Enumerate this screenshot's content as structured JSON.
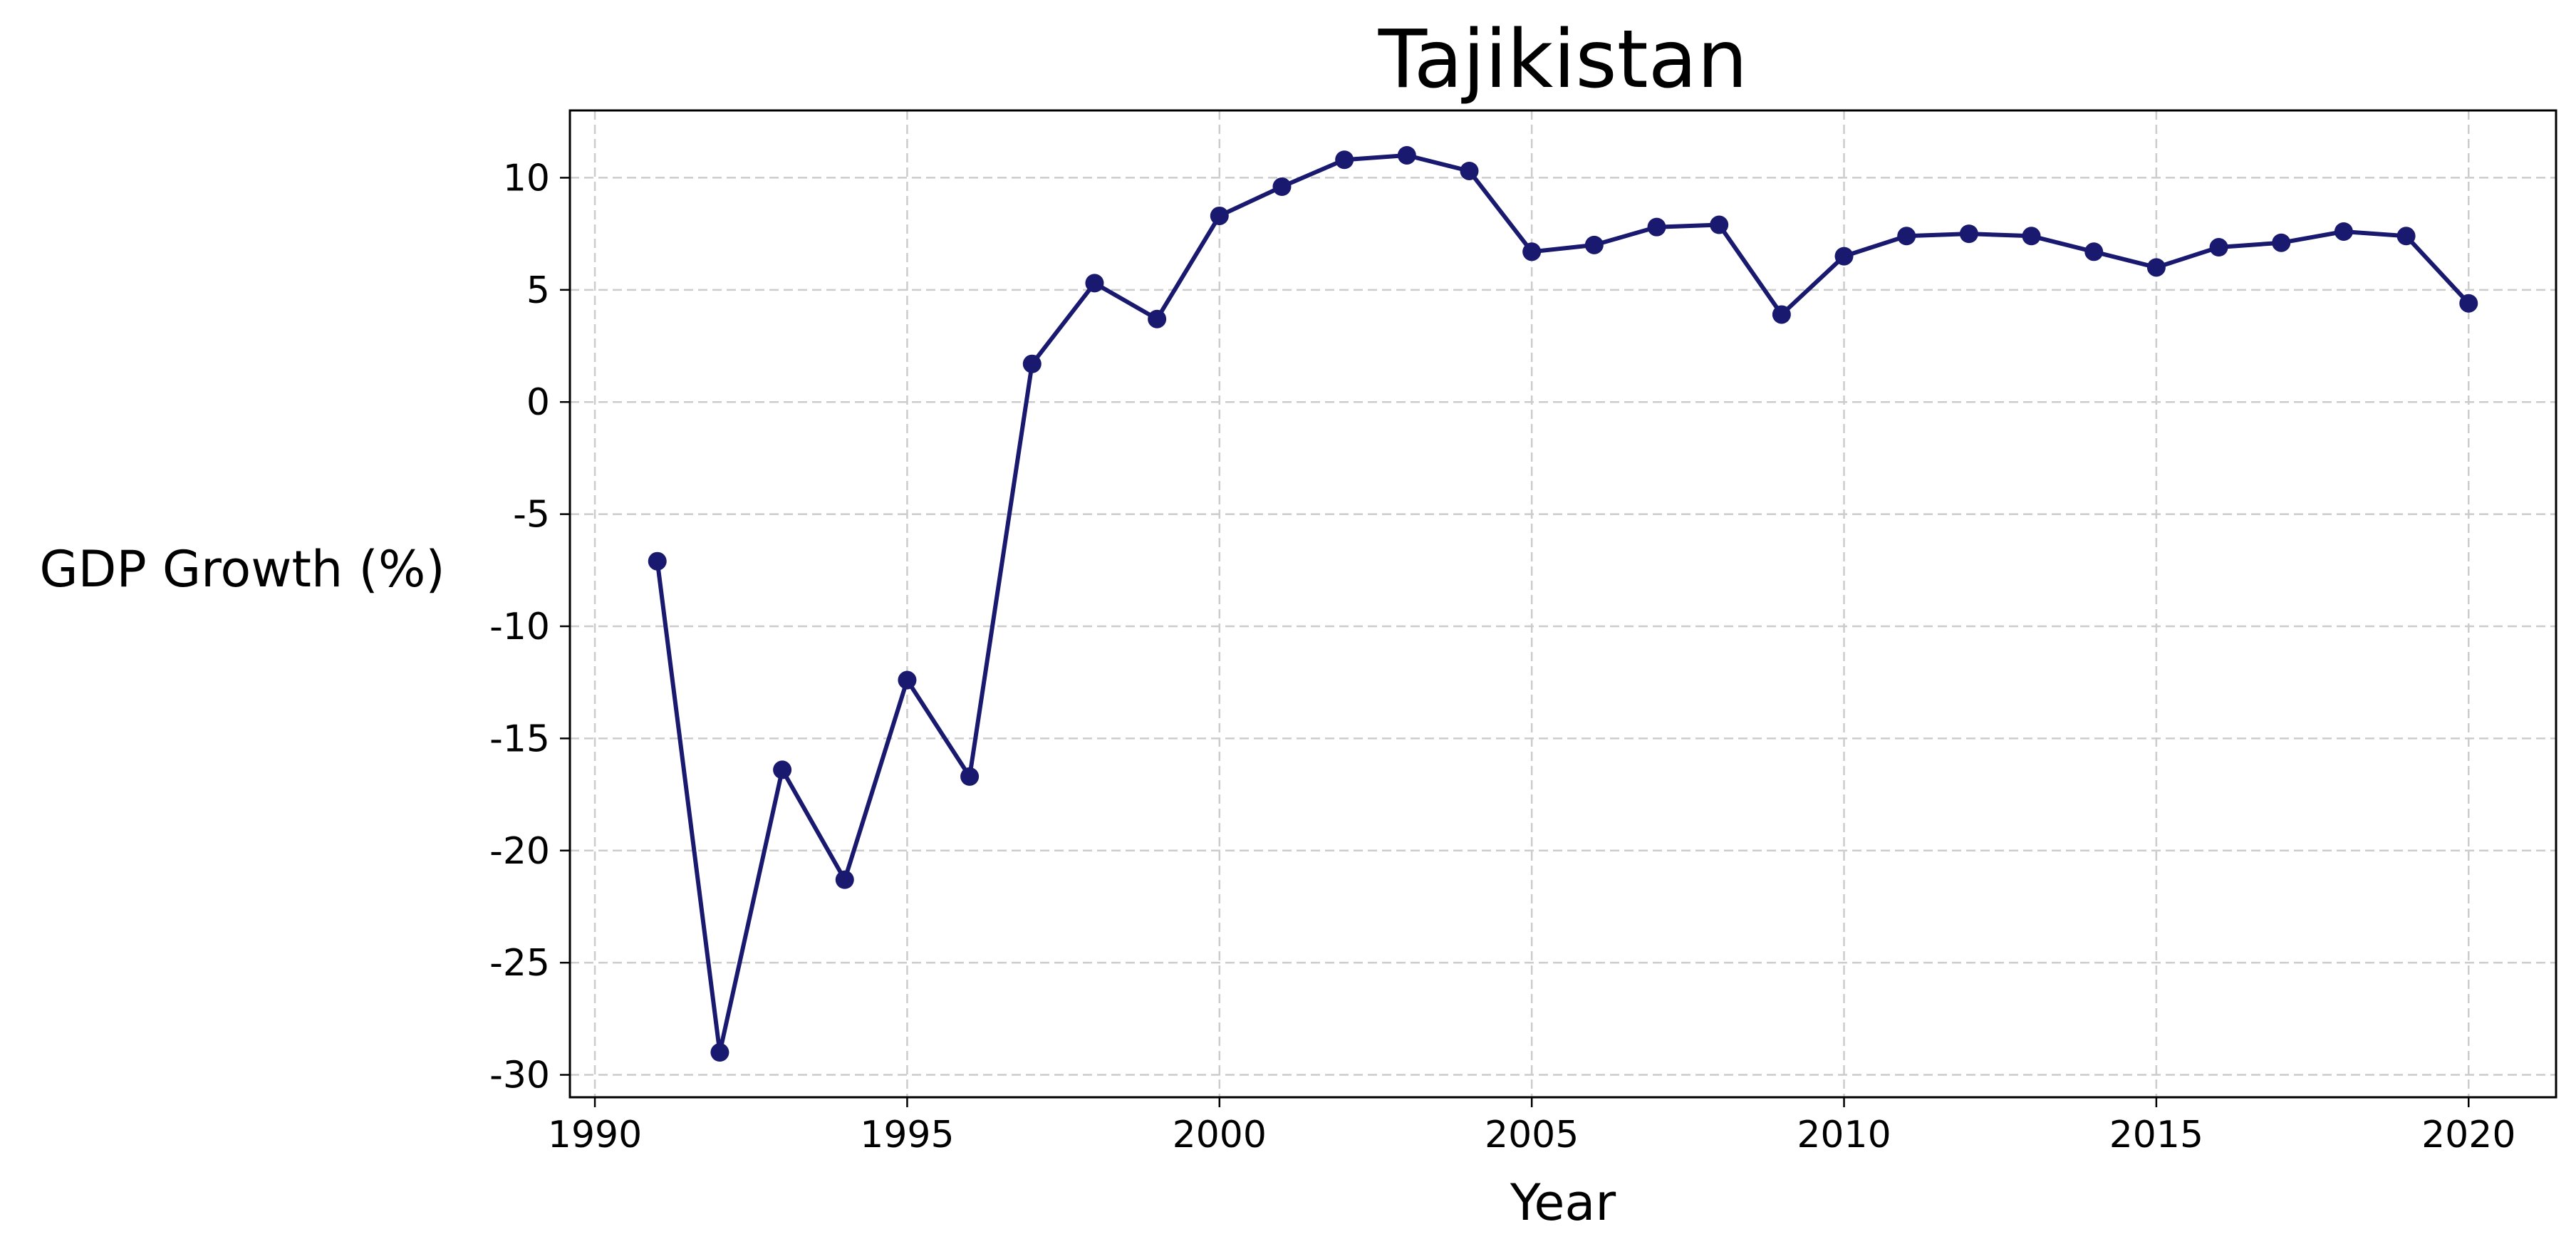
{
  "chart_data": {
    "type": "line",
    "title": "Tajikistan",
    "xlabel": "Year",
    "ylabel": "GDP Growth (%)",
    "xlim": [
      1989.6,
      2021.4
    ],
    "ylim": [
      -31,
      13
    ],
    "x_ticks": [
      1990,
      1995,
      2000,
      2005,
      2010,
      2015,
      2020
    ],
    "y_ticks": [
      10,
      5,
      0,
      -5,
      -10,
      -15,
      -20,
      -25,
      -30
    ],
    "grid": true,
    "line_color": "#191970",
    "series": [
      {
        "x": [
          1991,
          1992,
          1993,
          1994,
          1995,
          1996,
          1997,
          1998,
          1999,
          2000,
          2001,
          2002,
          2003,
          2004,
          2005,
          2006,
          2007,
          2008,
          2009,
          2010,
          2011,
          2012,
          2013,
          2014,
          2015,
          2016,
          2017,
          2018,
          2019,
          2020
        ],
        "values": [
          -7.1,
          -29.0,
          -16.4,
          -21.3,
          -12.4,
          -16.7,
          1.7,
          5.3,
          3.7,
          8.3,
          9.6,
          10.8,
          11.0,
          10.3,
          6.7,
          7.0,
          7.8,
          7.9,
          3.9,
          6.5,
          7.4,
          7.5,
          7.4,
          6.7,
          6.0,
          6.9,
          7.1,
          7.6,
          7.4,
          4.4
        ]
      }
    ]
  }
}
